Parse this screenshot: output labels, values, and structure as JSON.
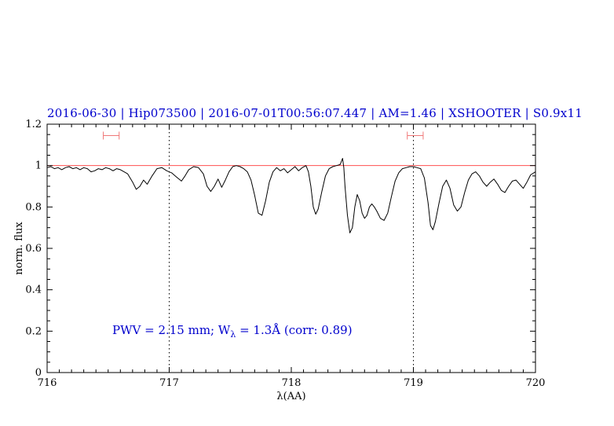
{
  "title": "2016-06-30 | Hip073500 | 2016-07-01T00:56:07.447 | AM=1.46 | XSHOOTER | S0.9x11",
  "annotation": {
    "prefix": "PWV = 2.15 mm; W",
    "sub": "λ",
    "suffix": " = 1.3Å (corr: 0.89)"
  },
  "chart_data": {
    "type": "line",
    "title": "2016-06-30 | Hip073500 | 2016-07-01T00:56:07.447 | AM=1.46 | XSHOOTER | S0.9x11",
    "xlabel": "λ(AA)",
    "ylabel": "norm. flux",
    "xlim": [
      716,
      720
    ],
    "ylim": [
      0,
      1.2
    ],
    "x_ticks": [
      716,
      717,
      718,
      719,
      720
    ],
    "x_tick_labels": [
      "716",
      "717",
      "718",
      "719",
      "720"
    ],
    "y_ticks": [
      0,
      0.2,
      0.4,
      0.6,
      0.8,
      1,
      1.2
    ],
    "y_tick_labels": [
      "0",
      "0.2",
      "0.4",
      "0.6",
      "0.8",
      "1",
      "1.2"
    ],
    "x_minor_step": 0.1,
    "y_minor_step": 0.05,
    "grid": false,
    "legend": "none",
    "vlines": [
      717,
      719
    ],
    "continuum_y": 1.0,
    "colors": {
      "spectrum": "#000000",
      "continuum": "#ff5050",
      "markers": "#f07878",
      "title": "#0000cd",
      "annotation": "#0000cd",
      "axis": "#000000"
    },
    "range_markers": [
      {
        "x1": 716.46,
        "x2": 716.59,
        "y": 1.145
      },
      {
        "x1": 718.95,
        "x2": 719.08,
        "y": 1.145
      }
    ],
    "series": [
      {
        "name": "normalized telluric spectrum",
        "points": [
          [
            716.0,
            0.99
          ],
          [
            716.03,
            0.995
          ],
          [
            716.06,
            0.985
          ],
          [
            716.09,
            0.99
          ],
          [
            716.12,
            0.98
          ],
          [
            716.15,
            0.99
          ],
          [
            716.18,
            0.995
          ],
          [
            716.21,
            0.985
          ],
          [
            716.24,
            0.99
          ],
          [
            716.27,
            0.98
          ],
          [
            716.3,
            0.99
          ],
          [
            716.33,
            0.985
          ],
          [
            716.36,
            0.97
          ],
          [
            716.39,
            0.975
          ],
          [
            716.42,
            0.985
          ],
          [
            716.45,
            0.98
          ],
          [
            716.48,
            0.99
          ],
          [
            716.51,
            0.985
          ],
          [
            716.54,
            0.975
          ],
          [
            716.57,
            0.985
          ],
          [
            716.6,
            0.98
          ],
          [
            716.63,
            0.97
          ],
          [
            716.66,
            0.96
          ],
          [
            716.7,
            0.92
          ],
          [
            716.73,
            0.885
          ],
          [
            716.76,
            0.9
          ],
          [
            716.79,
            0.93
          ],
          [
            716.82,
            0.91
          ],
          [
            716.86,
            0.95
          ],
          [
            716.9,
            0.985
          ],
          [
            716.94,
            0.99
          ],
          [
            716.98,
            0.975
          ],
          [
            717.02,
            0.965
          ],
          [
            717.06,
            0.945
          ],
          [
            717.1,
            0.925
          ],
          [
            717.13,
            0.95
          ],
          [
            717.16,
            0.98
          ],
          [
            717.2,
            0.995
          ],
          [
            717.24,
            0.99
          ],
          [
            717.28,
            0.96
          ],
          [
            717.31,
            0.9
          ],
          [
            717.34,
            0.875
          ],
          [
            717.37,
            0.9
          ],
          [
            717.4,
            0.935
          ],
          [
            717.43,
            0.895
          ],
          [
            717.46,
            0.93
          ],
          [
            717.49,
            0.97
          ],
          [
            717.52,
            0.995
          ],
          [
            717.55,
            1.0
          ],
          [
            717.58,
            0.995
          ],
          [
            717.61,
            0.985
          ],
          [
            717.64,
            0.97
          ],
          [
            717.67,
            0.93
          ],
          [
            717.7,
            0.855
          ],
          [
            717.73,
            0.77
          ],
          [
            717.76,
            0.76
          ],
          [
            717.79,
            0.83
          ],
          [
            717.82,
            0.92
          ],
          [
            717.85,
            0.97
          ],
          [
            717.88,
            0.99
          ],
          [
            717.91,
            0.975
          ],
          [
            717.94,
            0.985
          ],
          [
            717.97,
            0.965
          ],
          [
            718.0,
            0.98
          ],
          [
            718.03,
            0.995
          ],
          [
            718.06,
            0.975
          ],
          [
            718.09,
            0.99
          ],
          [
            718.12,
            1.0
          ],
          [
            718.14,
            0.97
          ],
          [
            718.16,
            0.9
          ],
          [
            718.18,
            0.8
          ],
          [
            718.2,
            0.765
          ],
          [
            718.22,
            0.79
          ],
          [
            718.25,
            0.875
          ],
          [
            718.28,
            0.95
          ],
          [
            718.31,
            0.985
          ],
          [
            718.34,
            0.995
          ],
          [
            718.37,
            1.0
          ],
          [
            718.4,
            1.005
          ],
          [
            718.42,
            1.035
          ],
          [
            718.43,
            0.99
          ],
          [
            718.44,
            0.9
          ],
          [
            718.46,
            0.76
          ],
          [
            718.48,
            0.675
          ],
          [
            718.5,
            0.7
          ],
          [
            718.52,
            0.8
          ],
          [
            718.54,
            0.86
          ],
          [
            718.56,
            0.83
          ],
          [
            718.58,
            0.77
          ],
          [
            718.6,
            0.745
          ],
          [
            718.62,
            0.76
          ],
          [
            718.64,
            0.8
          ],
          [
            718.66,
            0.815
          ],
          [
            718.68,
            0.8
          ],
          [
            718.7,
            0.78
          ],
          [
            718.73,
            0.745
          ],
          [
            718.76,
            0.735
          ],
          [
            718.79,
            0.77
          ],
          [
            718.82,
            0.85
          ],
          [
            718.85,
            0.925
          ],
          [
            718.88,
            0.965
          ],
          [
            718.91,
            0.985
          ],
          [
            718.94,
            0.99
          ],
          [
            718.97,
            0.995
          ],
          [
            719.0,
            0.995
          ],
          [
            719.03,
            0.99
          ],
          [
            719.06,
            0.985
          ],
          [
            719.09,
            0.94
          ],
          [
            719.12,
            0.82
          ],
          [
            719.14,
            0.71
          ],
          [
            719.16,
            0.69
          ],
          [
            719.18,
            0.73
          ],
          [
            719.21,
            0.82
          ],
          [
            719.24,
            0.9
          ],
          [
            719.27,
            0.93
          ],
          [
            719.3,
            0.89
          ],
          [
            719.33,
            0.81
          ],
          [
            719.36,
            0.78
          ],
          [
            719.39,
            0.8
          ],
          [
            719.42,
            0.87
          ],
          [
            719.45,
            0.93
          ],
          [
            719.48,
            0.96
          ],
          [
            719.51,
            0.97
          ],
          [
            719.54,
            0.95
          ],
          [
            719.57,
            0.92
          ],
          [
            719.6,
            0.9
          ],
          [
            719.63,
            0.92
          ],
          [
            719.66,
            0.935
          ],
          [
            719.69,
            0.91
          ],
          [
            719.72,
            0.88
          ],
          [
            719.75,
            0.87
          ],
          [
            719.78,
            0.9
          ],
          [
            719.81,
            0.925
          ],
          [
            719.84,
            0.93
          ],
          [
            719.87,
            0.91
          ],
          [
            719.9,
            0.89
          ],
          [
            719.93,
            0.92
          ],
          [
            719.96,
            0.955
          ],
          [
            720.0,
            0.97
          ]
        ]
      }
    ]
  }
}
